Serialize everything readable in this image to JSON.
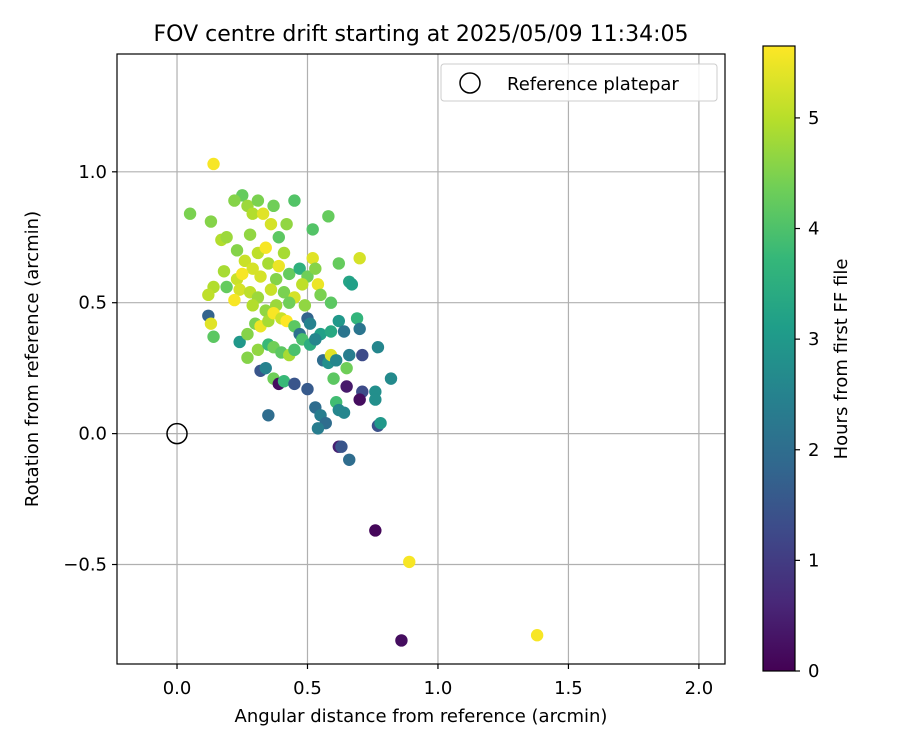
{
  "chart_data": {
    "type": "scatter",
    "title": "FOV centre drift starting at 2025/05/09 11:34:05",
    "xlabel": "Angular distance from reference (arcmin)",
    "ylabel": "Rotation from reference (arcmin)",
    "xlim": [
      -0.23,
      2.1
    ],
    "ylim": [
      -0.88,
      1.45
    ],
    "x_ticks": [
      0.0,
      0.5,
      1.0,
      1.5,
      2.0
    ],
    "x_tick_labels": [
      "0.0",
      "0.5",
      "1.0",
      "1.5",
      "2.0"
    ],
    "y_ticks": [
      1.0,
      0.5,
      0.0,
      -0.5
    ],
    "y_tick_labels": [
      "1.0",
      "0.5",
      "0.0",
      "−0.5"
    ],
    "grid": true,
    "legend": {
      "position": "top-right",
      "entries": [
        "Reference platepar"
      ]
    },
    "reference_point": {
      "x": 0.0,
      "y": 0.0
    },
    "colorbar": {
      "label": "Hours from first FF file",
      "colormap": "viridis",
      "range": [
        0,
        5.65
      ],
      "ticks": [
        0,
        1,
        2,
        3,
        4,
        5
      ],
      "tick_labels": [
        "0",
        "1",
        "2",
        "3",
        "4",
        "5"
      ],
      "colors": [
        "#440154",
        "#482878",
        "#3e4989",
        "#31688e",
        "#26828e",
        "#1f9e89",
        "#35b779",
        "#6ece58",
        "#b5de2b",
        "#fde725"
      ]
    },
    "points": [
      [
        0.14,
        1.03,
        5.6
      ],
      [
        0.05,
        0.84,
        4.5
      ],
      [
        0.13,
        0.81,
        4.6
      ],
      [
        0.25,
        0.91,
        4.3
      ],
      [
        0.22,
        0.89,
        4.6
      ],
      [
        0.27,
        0.87,
        4.8
      ],
      [
        0.31,
        0.89,
        4.5
      ],
      [
        0.37,
        0.87,
        4.4
      ],
      [
        0.45,
        0.89,
        4.1
      ],
      [
        0.29,
        0.84,
        5.0
      ],
      [
        0.33,
        0.84,
        5.4
      ],
      [
        0.36,
        0.8,
        5.3
      ],
      [
        0.42,
        0.8,
        4.7
      ],
      [
        0.52,
        0.78,
        4.1
      ],
      [
        0.58,
        0.83,
        4.3
      ],
      [
        0.17,
        0.74,
        5.0
      ],
      [
        0.19,
        0.75,
        4.8
      ],
      [
        0.23,
        0.7,
        4.6
      ],
      [
        0.28,
        0.76,
        4.7
      ],
      [
        0.31,
        0.69,
        5.1
      ],
      [
        0.34,
        0.71,
        5.6
      ],
      [
        0.39,
        0.75,
        4.2
      ],
      [
        0.41,
        0.69,
        4.9
      ],
      [
        0.26,
        0.66,
        5.2
      ],
      [
        0.29,
        0.63,
        5.3
      ],
      [
        0.35,
        0.65,
        4.9
      ],
      [
        0.39,
        0.64,
        5.5
      ],
      [
        0.18,
        0.62,
        4.9
      ],
      [
        0.23,
        0.59,
        5.2
      ],
      [
        0.25,
        0.61,
        5.6
      ],
      [
        0.32,
        0.6,
        5.3
      ],
      [
        0.38,
        0.59,
        4.6
      ],
      [
        0.43,
        0.61,
        4.3
      ],
      [
        0.47,
        0.63,
        3.6
      ],
      [
        0.5,
        0.6,
        4.4
      ],
      [
        0.52,
        0.67,
        5.4
      ],
      [
        0.53,
        0.63,
        4.6
      ],
      [
        0.14,
        0.56,
        5.0
      ],
      [
        0.19,
        0.56,
        4.3
      ],
      [
        0.24,
        0.55,
        5.3
      ],
      [
        0.28,
        0.54,
        5.1
      ],
      [
        0.31,
        0.52,
        4.8
      ],
      [
        0.36,
        0.55,
        5.2
      ],
      [
        0.41,
        0.54,
        4.5
      ],
      [
        0.45,
        0.52,
        5.3
      ],
      [
        0.48,
        0.57,
        5.1
      ],
      [
        0.54,
        0.57,
        5.5
      ],
      [
        0.55,
        0.53,
        4.5
      ],
      [
        0.12,
        0.53,
        5.1
      ],
      [
        0.22,
        0.51,
        5.6
      ],
      [
        0.29,
        0.49,
        5.0
      ],
      [
        0.34,
        0.47,
        4.7
      ],
      [
        0.38,
        0.49,
        4.8
      ],
      [
        0.43,
        0.5,
        4.4
      ],
      [
        0.49,
        0.49,
        4.7
      ],
      [
        0.59,
        0.5,
        4.2
      ],
      [
        0.66,
        0.58,
        3.3
      ],
      [
        0.67,
        0.57,
        3.2
      ],
      [
        0.7,
        0.67,
        5.3
      ],
      [
        0.62,
        0.65,
        4.3
      ],
      [
        0.12,
        0.45,
        1.8
      ],
      [
        0.13,
        0.42,
        5.4
      ],
      [
        0.14,
        0.37,
        4.2
      ],
      [
        0.24,
        0.35,
        3.0
      ],
      [
        0.27,
        0.38,
        4.6
      ],
      [
        0.3,
        0.42,
        4.5
      ],
      [
        0.32,
        0.41,
        5.5
      ],
      [
        0.35,
        0.43,
        4.9
      ],
      [
        0.37,
        0.46,
        5.6
      ],
      [
        0.4,
        0.44,
        5.2
      ],
      [
        0.42,
        0.43,
        5.7
      ],
      [
        0.45,
        0.41,
        4.2
      ],
      [
        0.47,
        0.38,
        2.1
      ],
      [
        0.5,
        0.44,
        1.8
      ],
      [
        0.51,
        0.42,
        2.5
      ],
      [
        0.53,
        0.36,
        3.1
      ],
      [
        0.55,
        0.38,
        3.2
      ],
      [
        0.59,
        0.39,
        3.4
      ],
      [
        0.62,
        0.43,
        3.0
      ],
      [
        0.64,
        0.39,
        2.2
      ],
      [
        0.69,
        0.44,
        3.7
      ],
      [
        0.7,
        0.4,
        2.2
      ],
      [
        0.27,
        0.29,
        4.6
      ],
      [
        0.31,
        0.32,
        4.7
      ],
      [
        0.35,
        0.34,
        3.8
      ],
      [
        0.37,
        0.33,
        4.4
      ],
      [
        0.4,
        0.31,
        4.2
      ],
      [
        0.43,
        0.3,
        4.9
      ],
      [
        0.45,
        0.32,
        4.0
      ],
      [
        0.48,
        0.36,
        4.0
      ],
      [
        0.51,
        0.34,
        3.5
      ],
      [
        0.53,
        0.36,
        2.6
      ],
      [
        0.56,
        0.28,
        2.0
      ],
      [
        0.58,
        0.27,
        2.8
      ],
      [
        0.59,
        0.3,
        5.4
      ],
      [
        0.61,
        0.28,
        2.6
      ],
      [
        0.66,
        0.3,
        2.4
      ],
      [
        0.71,
        0.3,
        1.3
      ],
      [
        0.77,
        0.33,
        2.6
      ],
      [
        0.32,
        0.24,
        1.5
      ],
      [
        0.34,
        0.25,
        2.5
      ],
      [
        0.37,
        0.21,
        4.4
      ],
      [
        0.39,
        0.19,
        0.2
      ],
      [
        0.41,
        0.2,
        3.8
      ],
      [
        0.45,
        0.19,
        1.5
      ],
      [
        0.5,
        0.17,
        1.6
      ],
      [
        0.6,
        0.21,
        4.2
      ],
      [
        0.65,
        0.25,
        4.4
      ],
      [
        0.65,
        0.18,
        0.4
      ],
      [
        0.71,
        0.16,
        1.3
      ],
      [
        0.7,
        0.13,
        0.2
      ],
      [
        0.76,
        0.16,
        2.8
      ],
      [
        0.82,
        0.21,
        2.7
      ],
      [
        0.35,
        0.07,
        2.0
      ],
      [
        0.53,
        0.1,
        2.0
      ],
      [
        0.55,
        0.07,
        2.4
      ],
      [
        0.57,
        0.04,
        2.0
      ],
      [
        0.61,
        0.12,
        3.9
      ],
      [
        0.62,
        0.09,
        2.6
      ],
      [
        0.64,
        0.08,
        2.6
      ],
      [
        0.54,
        0.02,
        2.4
      ],
      [
        0.76,
        0.13,
        2.8
      ],
      [
        0.77,
        0.03,
        1.4
      ],
      [
        0.78,
        0.04,
        3.0
      ],
      [
        0.62,
        -0.05,
        0.5
      ],
      [
        0.63,
        -0.05,
        1.5
      ],
      [
        0.66,
        -0.1,
        2.0
      ],
      [
        0.76,
        -0.37,
        0.1
      ],
      [
        0.89,
        -0.49,
        5.6
      ],
      [
        0.86,
        -0.79,
        0.2
      ],
      [
        1.38,
        -0.77,
        5.6
      ]
    ]
  }
}
